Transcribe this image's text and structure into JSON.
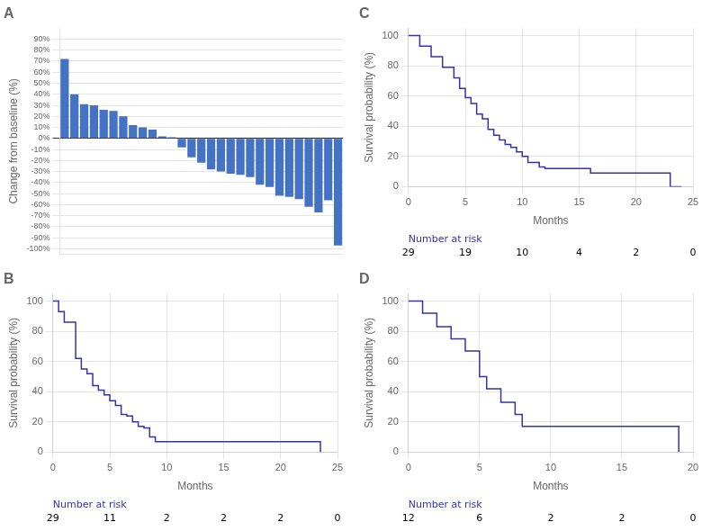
{
  "chart_data": [
    {
      "type": "bar",
      "title": "A",
      "categories": [
        null,
        null,
        null,
        null,
        null,
        null,
        null,
        null,
        null,
        null,
        null,
        null,
        null,
        null,
        null,
        null,
        null,
        null,
        null,
        null,
        null,
        null,
        null,
        null,
        null,
        null,
        null,
        null,
        null
      ],
      "values": [
        72,
        40,
        31,
        30,
        26,
        25,
        20,
        12,
        10,
        8,
        2,
        1,
        -8,
        -17,
        -22,
        -28,
        -30,
        -32,
        -33,
        -35,
        -42,
        -44,
        -52,
        -53,
        -55,
        -62,
        -67,
        -56,
        -97
      ],
      "color": "#4472C4",
      "ylabel": "Change from baseline (%)",
      "ylim": [
        -105,
        100
      ],
      "yticks": [
        {
          "value": 90,
          "label": "90%"
        },
        {
          "value": 80,
          "label": "80%"
        },
        {
          "value": 70,
          "label": "70%"
        },
        {
          "value": 60,
          "label": "60%"
        },
        {
          "value": 50,
          "label": "50%"
        },
        {
          "value": 40,
          "label": "40%"
        },
        {
          "value": 30,
          "label": "30%"
        },
        {
          "value": 20,
          "label": "20%"
        },
        {
          "value": 10,
          "label": "10%"
        },
        {
          "value": 0,
          "label": "0%"
        },
        {
          "value": -10,
          "label": "-10%"
        },
        {
          "value": -20,
          "label": "-20%"
        },
        {
          "value": -30,
          "label": "-30%"
        },
        {
          "value": -40,
          "label": "-40%"
        },
        {
          "value": -50,
          "label": "-50%"
        },
        {
          "value": -60,
          "label": "-60%"
        },
        {
          "value": -70,
          "label": "-70%"
        },
        {
          "value": -80,
          "label": "-80%"
        },
        {
          "value": -90,
          "label": "-90%"
        },
        {
          "value": -100,
          "label": "-100%"
        }
      ],
      "grid": true,
      "tick_labels": "y"
    },
    {
      "type": "step",
      "title": "B",
      "x": [
        0,
        0.5,
        1.0,
        1.5,
        2.0,
        2.5,
        3.0,
        3.5,
        4.0,
        4.5,
        5.0,
        5.5,
        6.0,
        6.5,
        7.0,
        7.5,
        8.0,
        8.5,
        9.0,
        9.5,
        10.0,
        23.0,
        23.5
      ],
      "values": [
        100,
        93,
        86,
        86,
        62,
        55,
        52,
        44,
        41,
        38,
        34,
        31,
        25,
        24,
        20,
        17,
        16,
        10,
        7,
        7,
        7,
        7,
        0
      ],
      "color": "#3333AA",
      "xlabel": "Months",
      "ylabel": "Survival probability (%)",
      "xlim": [
        0,
        25
      ],
      "ylim": [
        0,
        105
      ],
      "xticks": [
        0,
        5,
        10,
        15,
        20,
        25
      ],
      "yticks": [
        0,
        20,
        40,
        60,
        80,
        100
      ],
      "grid": true,
      "number_at_risk": {
        "label": "Number at risk",
        "color": "#3333AA",
        "x": [
          0,
          5,
          10,
          15,
          20,
          25
        ],
        "values": [
          29,
          11,
          2,
          2,
          2,
          0
        ]
      }
    },
    {
      "type": "step",
      "title": "C",
      "x": [
        0,
        0.5,
        1.0,
        1.5,
        2.0,
        2.5,
        3.0,
        3.5,
        4.0,
        4.5,
        5.0,
        5.5,
        6.0,
        6.5,
        7.0,
        7.5,
        8.0,
        8.5,
        9.0,
        9.5,
        10.0,
        10.5,
        11.0,
        11.5,
        12.0,
        13.0,
        14.0,
        15.0,
        16.0,
        17.0,
        18.0,
        19.0,
        20.0,
        21.0,
        22.0,
        23.0,
        24.0
      ],
      "values": [
        100,
        100,
        93,
        93,
        86,
        86,
        79,
        79,
        72,
        65,
        59,
        55,
        48,
        45,
        38,
        34,
        31,
        28,
        26,
        23,
        20,
        16,
        16,
        13,
        12,
        12,
        12,
        12,
        9,
        9,
        9,
        9,
        9,
        9,
        9,
        0,
        0
      ],
      "color": "#3333AA",
      "xlabel": "Months",
      "ylabel": "Survival probability (%)",
      "xlim": [
        0,
        25
      ],
      "ylim": [
        0,
        105
      ],
      "xticks": [
        0,
        5,
        10,
        15,
        20,
        25
      ],
      "yticks": [
        0,
        20,
        40,
        60,
        80,
        100
      ],
      "grid": true,
      "number_at_risk": {
        "label": "Number at risk",
        "color": "#3333AA",
        "x": [
          0,
          5,
          10,
          15,
          20,
          25
        ],
        "values": [
          29,
          19,
          10,
          4,
          2,
          0
        ]
      }
    },
    {
      "type": "step",
      "title": "D",
      "x": [
        0,
        0.3,
        1.0,
        1.5,
        2.0,
        2.5,
        3.0,
        3.5,
        4.0,
        4.5,
        5.0,
        5.5,
        6.0,
        6.5,
        7.0,
        7.5,
        8.0,
        9.0,
        18.5,
        19.0
      ],
      "values": [
        100,
        100,
        92,
        92,
        83,
        83,
        75,
        75,
        67,
        67,
        50,
        42,
        42,
        33,
        33,
        25,
        17,
        17,
        17,
        0
      ],
      "color": "#3333AA",
      "xlabel": "Months",
      "ylabel": "Survival probability (%)",
      "xlim": [
        0,
        20
      ],
      "ylim": [
        0,
        105
      ],
      "xticks": [
        0,
        5,
        10,
        15,
        20
      ],
      "yticks": [
        0,
        20,
        40,
        60,
        80,
        100
      ],
      "grid": true,
      "number_at_risk": {
        "label": "Number at risk",
        "color": "#3333AA",
        "x": [
          0,
          5,
          10,
          15,
          20
        ],
        "values": [
          12,
          6,
          2,
          2,
          0
        ]
      }
    }
  ]
}
